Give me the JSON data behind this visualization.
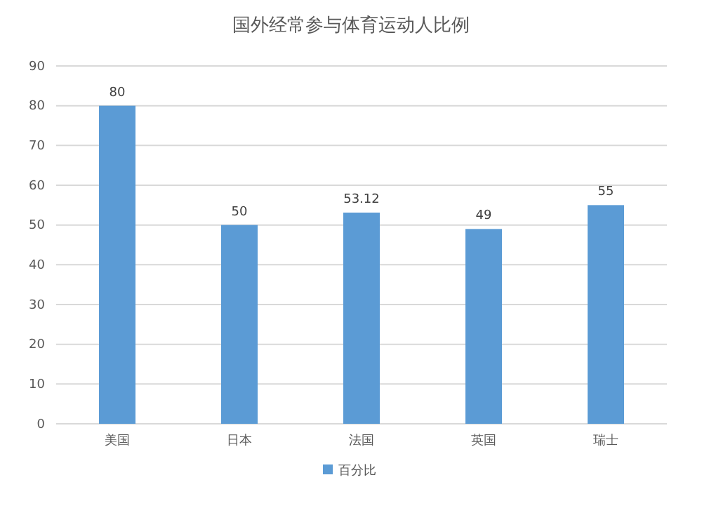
{
  "chart_data": {
    "type": "bar",
    "title": "国外经常参与体育运动人比例",
    "categories": [
      "美国",
      "日本",
      "法国",
      "英国",
      "瑞士"
    ],
    "series": [
      {
        "name": "百分比",
        "color": "#5b9bd5",
        "values": [
          80,
          50,
          53.12,
          49,
          55
        ]
      }
    ],
    "ylim": [
      0,
      90
    ],
    "yticks": [
      0,
      10,
      20,
      30,
      40,
      50,
      60,
      70,
      80,
      90
    ],
    "grid": "y",
    "legend": "bottom",
    "data_labels": true
  }
}
